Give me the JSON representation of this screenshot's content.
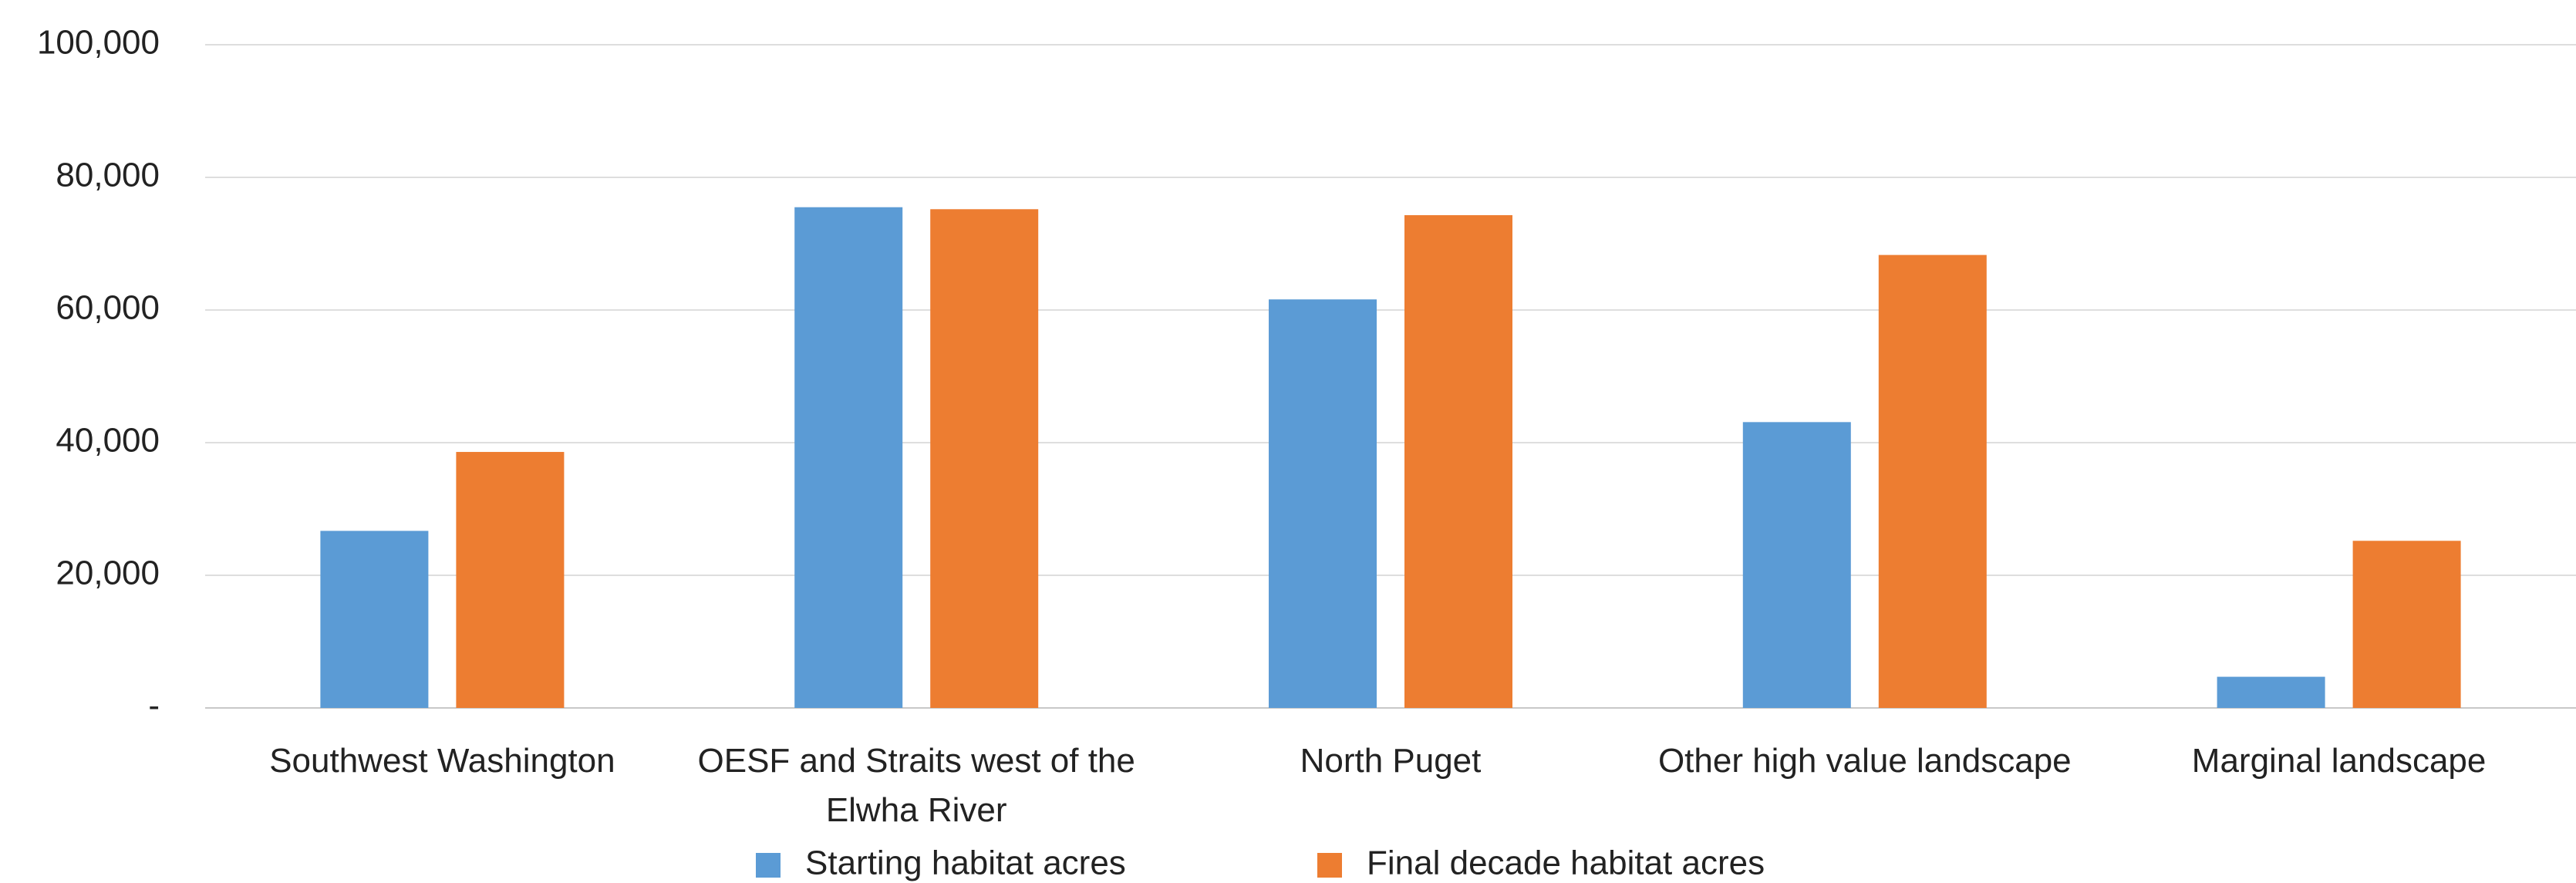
{
  "chart_data": {
    "type": "bar",
    "categories": [
      "Southwest Washington",
      "OESF and Straits west of the Elwha River",
      "North Puget",
      "Other high value landscape",
      "Marginal landscape"
    ],
    "series": [
      {
        "name": "Starting habitat acres",
        "color": "#5b9bd5",
        "values": [
          26700,
          75500,
          61600,
          43100,
          4700
        ]
      },
      {
        "name": "Final decade habitat acres",
        "color": "#ed7d31",
        "values": [
          38600,
          75200,
          74300,
          68300,
          25200
        ]
      }
    ],
    "ylim": [
      0,
      100000
    ],
    "yticks": [
      {
        "value": 0,
        "label": "-"
      },
      {
        "value": 20000,
        "label": "20,000"
      },
      {
        "value": 40000,
        "label": "40,000"
      },
      {
        "value": 60000,
        "label": "60,000"
      },
      {
        "value": 80000,
        "label": "80,000"
      },
      {
        "value": 100000,
        "label": "100,000"
      }
    ],
    "grid": true,
    "legend": "bottom"
  }
}
